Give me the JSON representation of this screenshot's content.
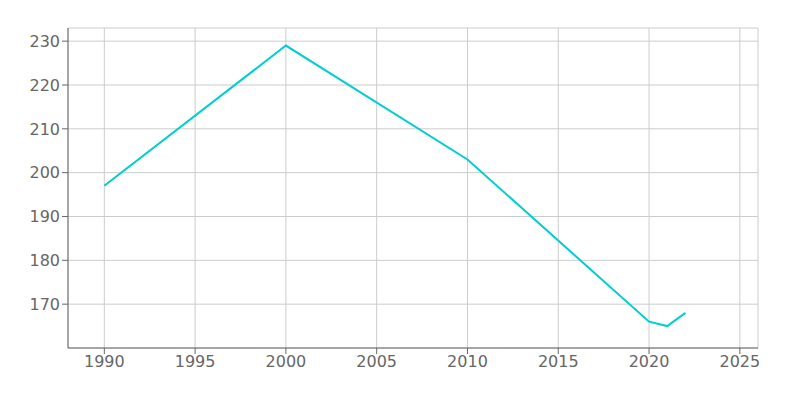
{
  "chart_data": {
    "type": "line",
    "x": [
      1990,
      2000,
      2010,
      2020,
      2021,
      2022
    ],
    "values": [
      197,
      229,
      203,
      166,
      165,
      168
    ],
    "color": "#00CED1",
    "xlim": [
      1988,
      2026
    ],
    "ylim": [
      160,
      233
    ],
    "xticks": [
      1990,
      1995,
      2000,
      2005,
      2010,
      2015,
      2020,
      2025
    ],
    "yticks": [
      170,
      180,
      190,
      200,
      210,
      220,
      230
    ],
    "grid": true
  }
}
